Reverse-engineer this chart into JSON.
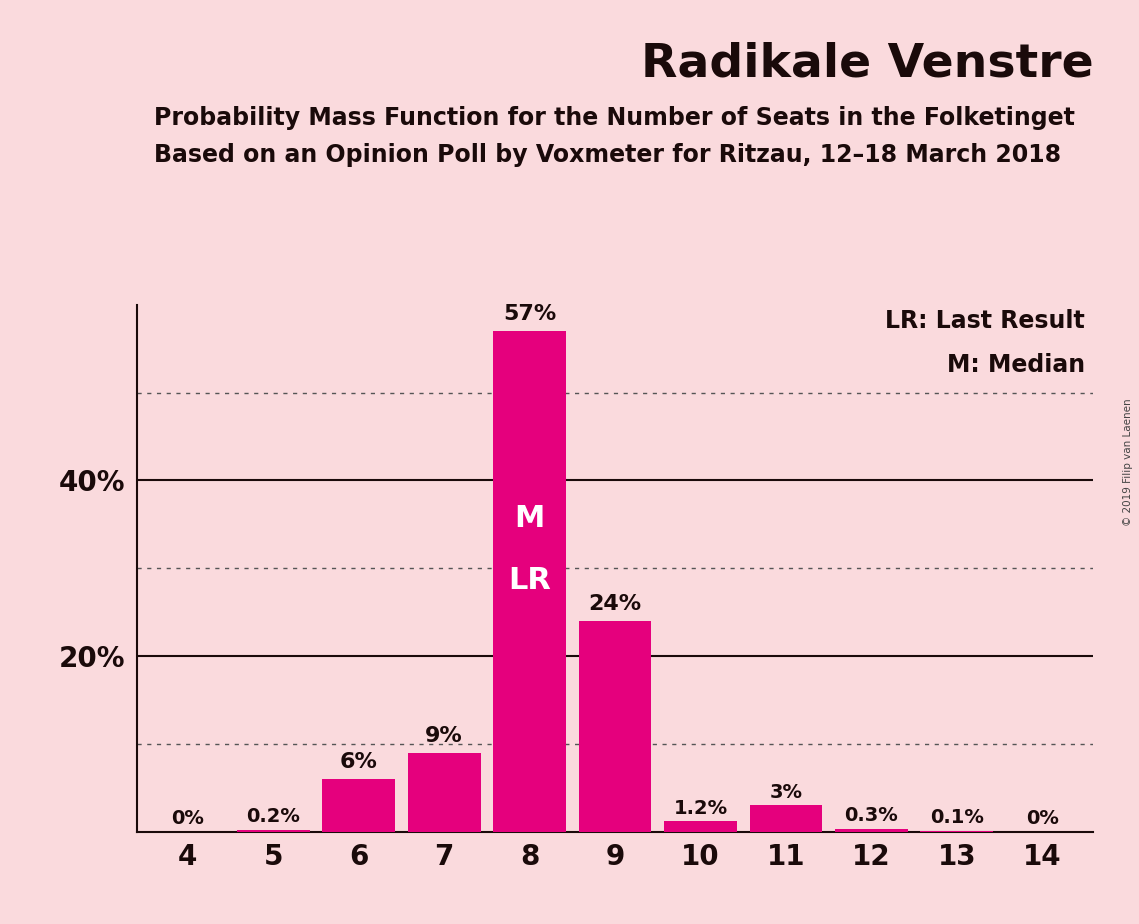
{
  "title": "Radikale Venstre",
  "subtitle1": "Probability Mass Function for the Number of Seats in the Folketinget",
  "subtitle2": "Based on an Opinion Poll by Voxmeter for Ritzau, 12–18 March 2018",
  "seats": [
    4,
    5,
    6,
    7,
    8,
    9,
    10,
    11,
    12,
    13,
    14
  ],
  "probabilities": [
    0.0,
    0.2,
    6.0,
    9.0,
    57.0,
    24.0,
    1.2,
    3.0,
    0.3,
    0.1,
    0.0
  ],
  "bar_labels": [
    "0%",
    "0.2%",
    "6%",
    "9%",
    "57%",
    "24%",
    "1.2%",
    "3%",
    "0.3%",
    "0.1%",
    "0%"
  ],
  "bar_color": "#E5007D",
  "background_color": "#FADADD",
  "text_color": "#1a0a0a",
  "title_fontsize": 34,
  "subtitle_fontsize": 17,
  "legend_lr": "LR: Last Result",
  "legend_m": "M: Median",
  "median_seat": 8,
  "last_result_seat": 8,
  "watermark": "© 2019 Filip van Laenen",
  "grid_dotted_values": [
    10,
    30,
    50
  ],
  "grid_solid_values": [
    20,
    40
  ],
  "ylim": [
    0,
    60
  ],
  "bar_label_fontsize_small": 14,
  "bar_label_fontsize_large": 16,
  "ml_fontsize": 22,
  "legend_fontsize": 17,
  "tick_fontsize": 20
}
